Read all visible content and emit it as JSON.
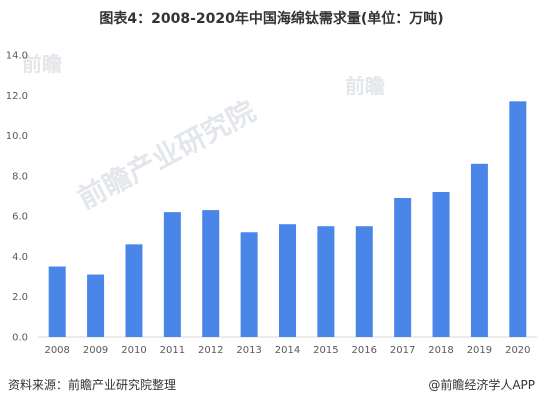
{
  "title": "图表4：2008-2020年中国海绵钛需求量(单位：万吨)",
  "footer": {
    "source": "资料来源：前瞻产业研究院整理",
    "brand": "@前瞻经济学人APP"
  },
  "watermarks": [
    "前瞻",
    "前瞻",
    "前瞻产业研究院"
  ],
  "colors": {
    "bar": "#4a86e8",
    "axis": "#d9d9d9",
    "text": "#595959"
  },
  "chart_data": {
    "type": "bar",
    "title": "图表4：2008-2020年中国海绵钛需求量(单位：万吨)",
    "categories": [
      "2008",
      "2009",
      "2010",
      "2011",
      "2012",
      "2013",
      "2014",
      "2015",
      "2016",
      "2017",
      "2018",
      "2019",
      "2020"
    ],
    "values": [
      3.5,
      3.1,
      4.6,
      6.2,
      6.3,
      5.2,
      5.6,
      5.5,
      5.5,
      6.9,
      7.2,
      8.6,
      11.7
    ],
    "ylim": [
      0,
      14
    ],
    "yticks": [
      "0.0",
      "2.0",
      "4.0",
      "6.0",
      "8.0",
      "10.0",
      "12.0",
      "14.0"
    ],
    "xlabel": "",
    "ylabel": "",
    "grid": false,
    "legend": "none"
  }
}
